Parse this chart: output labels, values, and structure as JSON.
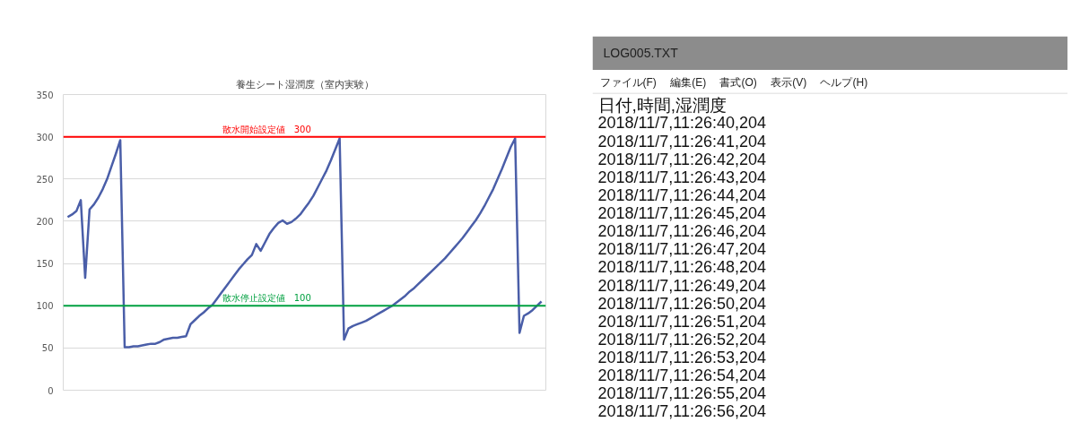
{
  "chart_data": [
    {
      "type": "line",
      "title": "養生シート湿潤度（室内実験）",
      "categories": [
        null,
        null,
        null,
        null,
        null,
        null,
        null,
        null,
        null,
        null,
        null,
        null,
        null,
        null,
        null,
        null,
        null,
        null,
        null,
        null,
        null,
        null,
        null,
        null,
        null,
        null,
        null,
        null,
        null,
        null,
        null,
        null,
        null,
        null,
        null,
        null,
        null,
        null,
        null,
        null,
        null,
        null,
        null,
        null,
        null,
        null,
        null,
        null,
        null,
        null,
        null,
        null,
        null,
        null,
        null,
        null,
        null,
        null,
        null,
        null,
        null,
        null,
        null,
        null,
        null,
        null,
        null,
        null,
        null,
        null,
        null,
        null,
        null,
        null,
        null,
        null,
        null,
        null,
        null,
        null,
        null,
        null,
        null,
        null,
        null,
        null,
        null,
        null,
        null,
        null,
        null,
        null,
        null,
        null,
        null,
        null,
        null,
        null,
        null,
        null,
        null,
        null,
        null,
        null,
        null,
        null,
        null,
        null,
        null
      ],
      "series": [
        {
          "color": "#4a5ea8",
          "values": [
            205,
            208,
            212,
            225,
            133,
            214,
            220,
            228,
            238,
            250,
            265,
            280,
            296,
            51,
            51,
            52,
            52,
            53,
            54,
            55,
            55,
            57,
            60,
            61,
            62,
            62,
            63,
            64,
            78,
            83,
            88,
            92,
            97,
            101,
            108,
            115,
            122,
            129,
            136,
            143,
            149,
            155,
            160,
            173,
            165,
            175,
            185,
            192,
            198,
            201,
            197,
            199,
            203,
            208,
            215,
            222,
            230,
            240,
            250,
            260,
            272,
            285,
            298,
            60,
            73,
            76,
            78,
            80,
            82,
            85,
            88,
            91,
            94,
            97,
            100,
            104,
            108,
            112,
            117,
            121,
            126,
            131,
            136,
            141,
            146,
            151,
            156,
            162,
            168,
            174,
            180,
            187,
            194,
            201,
            209,
            218,
            228,
            238,
            250,
            262,
            275,
            288,
            298,
            68,
            88,
            91,
            95,
            100,
            105
          ]
        }
      ],
      "ylim": [
        0,
        350
      ],
      "yticks": [
        0,
        50,
        100,
        150,
        200,
        250,
        300,
        350
      ],
      "grid": "y",
      "tick_labels": "y",
      "marker": "none",
      "line_style": "solid",
      "ref_lines": [
        {
          "axis": "y",
          "value": 300,
          "label": "散水開始設定値　300",
          "color": "#ff0000"
        },
        {
          "axis": "y",
          "value": 100,
          "label": "散水停止設定値　100",
          "color": "#00a040"
        }
      ]
    },
    {
      "type": "other",
      "title": "LOG005.TXT",
      "annotations": [
        "ファイル(F)　 編集(E)　 書式(O)　 表示(V)　 ヘルプ(H)",
        "日付,時間,湿潤度",
        "2018/11/7,11:26:40,204",
        "2018/11/7,11:26:41,204",
        "2018/11/7,11:26:42,204",
        "2018/11/7,11:26:43,204",
        "2018/11/7,11:26:44,204",
        "2018/11/7,11:26:45,204",
        "2018/11/7,11:26:46,204",
        "2018/11/7,11:26:47,204",
        "2018/11/7,11:26:48,204",
        "2018/11/7,11:26:49,204",
        "2018/11/7,11:26:50,204",
        "2018/11/7,11:26:51,204",
        "2018/11/7,11:26:52,204",
        "2018/11/7,11:26:53,204",
        "2018/11/7,11:26:54,204",
        "2018/11/7,11:26:55,204",
        "2018/11/7,11:26:56,204"
      ]
    }
  ]
}
